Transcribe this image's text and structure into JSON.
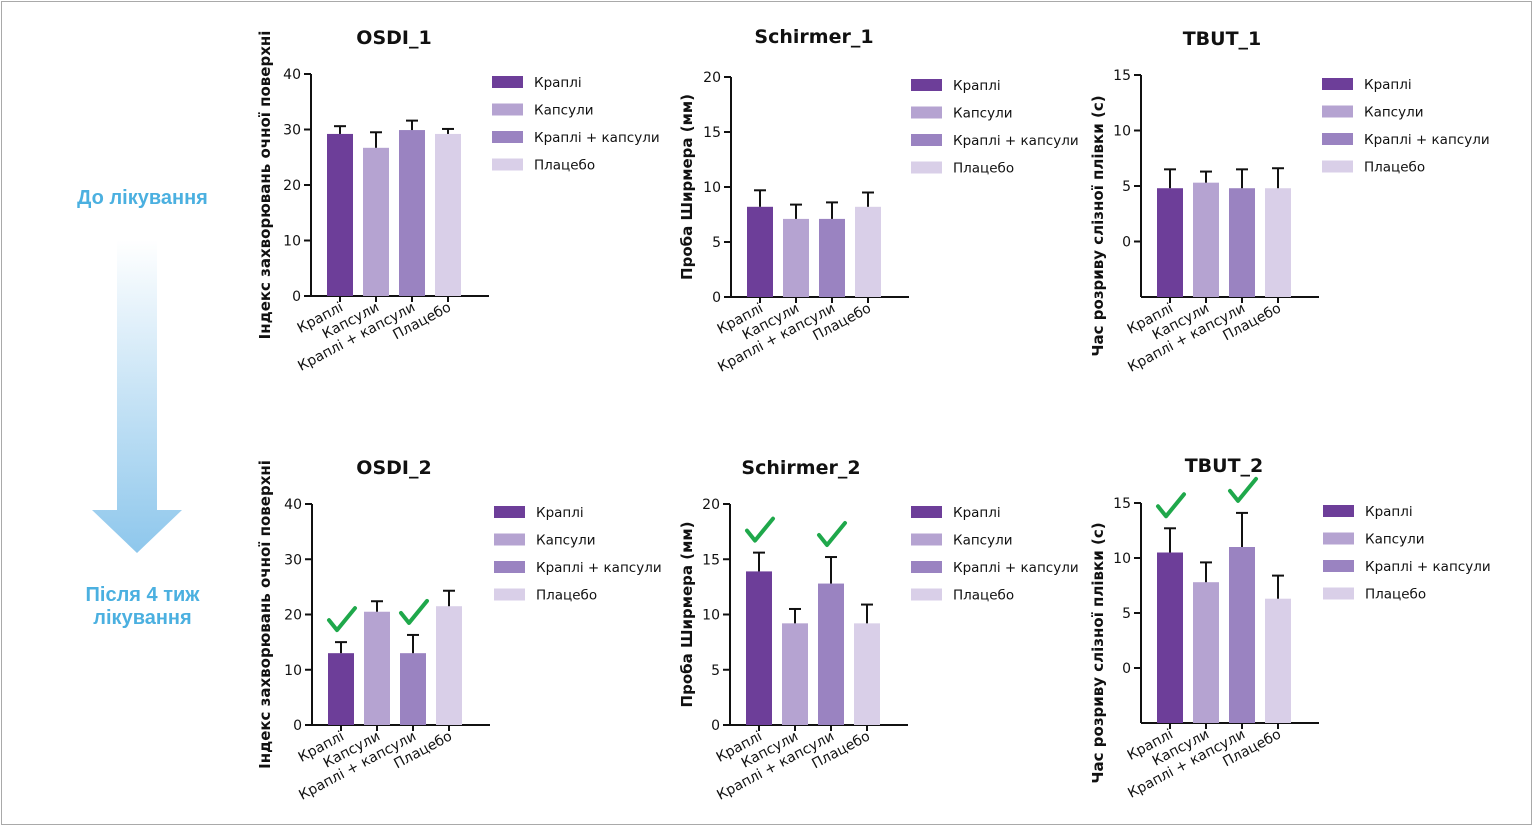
{
  "figure": {
    "before_label": "До лікування",
    "after_label_line1": "Після 4 тиж",
    "after_label_line2": "лікування"
  },
  "colors": {
    "Краплі": "#6d3e99",
    "Капсули": "#b5a3d1",
    "Краплі + капсули": "#9a83c1",
    "Плацебо": "#d9cfe8",
    "check": "#1fa84b",
    "side_label": "#4bb0e0"
  },
  "chart_data": [
    {
      "type": "bar",
      "title": "OSDI_1",
      "ylabel": "Індекс захворювань очної поверхні",
      "categories": [
        "Краплі",
        "Капсули",
        "Краплі + капсули",
        "Плацебо"
      ],
      "values": [
        29.2,
        26.7,
        29.9,
        29.2
      ],
      "errors": [
        1.4,
        2.8,
        1.7,
        0.9
      ],
      "ylim": [
        0,
        40
      ],
      "yticks": [
        "0",
        "10",
        "20",
        "30",
        "40"
      ],
      "significant": [
        false,
        false,
        false,
        false
      ],
      "legend": [
        "Краплі",
        "Капсули",
        "Краплі + капсули",
        "Плацебо"
      ]
    },
    {
      "type": "bar",
      "title": "Schirmer_1",
      "ylabel": "Проба Ширмера (мм)",
      "categories": [
        "Краплі",
        "Капсули",
        "Краплі + капсули",
        "Плацебо"
      ],
      "values": [
        8.2,
        7.1,
        7.1,
        8.2
      ],
      "errors": [
        1.5,
        1.3,
        1.5,
        1.3
      ],
      "ylim": [
        0,
        20
      ],
      "yticks": [
        "0",
        "5",
        "10",
        "15",
        "20"
      ],
      "significant": [
        false,
        false,
        false,
        false
      ],
      "legend": [
        "Краплі",
        "Капсули",
        "Краплі + капсули",
        "Плацебо"
      ]
    },
    {
      "type": "bar",
      "title": "TBUT_1",
      "ylabel": "Час розриву слізної плівки (с)",
      "categories": [
        "Краплі",
        "Капсули",
        "Краплі + капсули",
        "Плацебо"
      ],
      "values": [
        4.8,
        5.3,
        4.8,
        4.8
      ],
      "errors": [
        1.7,
        1.0,
        1.7,
        1.8
      ],
      "ylim": [
        -5,
        15
      ],
      "yticks": [
        "0",
        "5",
        "10",
        "15"
      ],
      "significant": [
        false,
        false,
        false,
        false
      ],
      "legend": [
        "Краплі",
        "Капсули",
        "Краплі + капсули",
        "Плацебо"
      ]
    },
    {
      "type": "bar",
      "title": "OSDI_2",
      "ylabel": "Індекс захворювань очної поверхні",
      "categories": [
        "Краплі",
        "Капсули",
        "Краплі + капсули",
        "Плацебо"
      ],
      "values": [
        13.0,
        20.5,
        13.0,
        21.5
      ],
      "errors": [
        2.0,
        1.9,
        3.3,
        2.8
      ],
      "ylim": [
        0,
        40
      ],
      "yticks": [
        "0",
        "10",
        "20",
        "30",
        "40"
      ],
      "significant": [
        true,
        false,
        true,
        false
      ],
      "legend": [
        "Краплі",
        "Капсули",
        "Краплі + капсули",
        "Плацебо"
      ]
    },
    {
      "type": "bar",
      "title": "Schirmer_2",
      "ylabel": "Проба Ширмера (мм)",
      "categories": [
        "Краплі",
        "Капсули",
        "Краплі + капсули",
        "Плацебо"
      ],
      "values": [
        13.9,
        9.2,
        12.8,
        9.2
      ],
      "errors": [
        1.7,
        1.3,
        2.4,
        1.7
      ],
      "ylim": [
        0,
        20
      ],
      "yticks": [
        "0",
        "5",
        "10",
        "15",
        "20"
      ],
      "significant": [
        true,
        false,
        true,
        false
      ],
      "legend": [
        "Краплі",
        "Капсули",
        "Краплі + капсули",
        "Плацебо"
      ]
    },
    {
      "type": "bar",
      "title": "TBUT_2",
      "ylabel": "Час розриву слізної плівки (с)",
      "categories": [
        "Краплі",
        "Капсули",
        "Краплі + капсули",
        "Плацебо"
      ],
      "values": [
        10.5,
        7.8,
        11.0,
        6.3
      ],
      "errors": [
        2.2,
        1.8,
        3.1,
        2.1
      ],
      "ylim": [
        -5,
        15
      ],
      "yticks": [
        "0",
        "5",
        "10",
        "15"
      ],
      "significant": [
        true,
        false,
        true,
        false
      ],
      "legend": [
        "Краплі",
        "Капсули",
        "Краплі + капсули",
        "Плацебо"
      ]
    }
  ]
}
